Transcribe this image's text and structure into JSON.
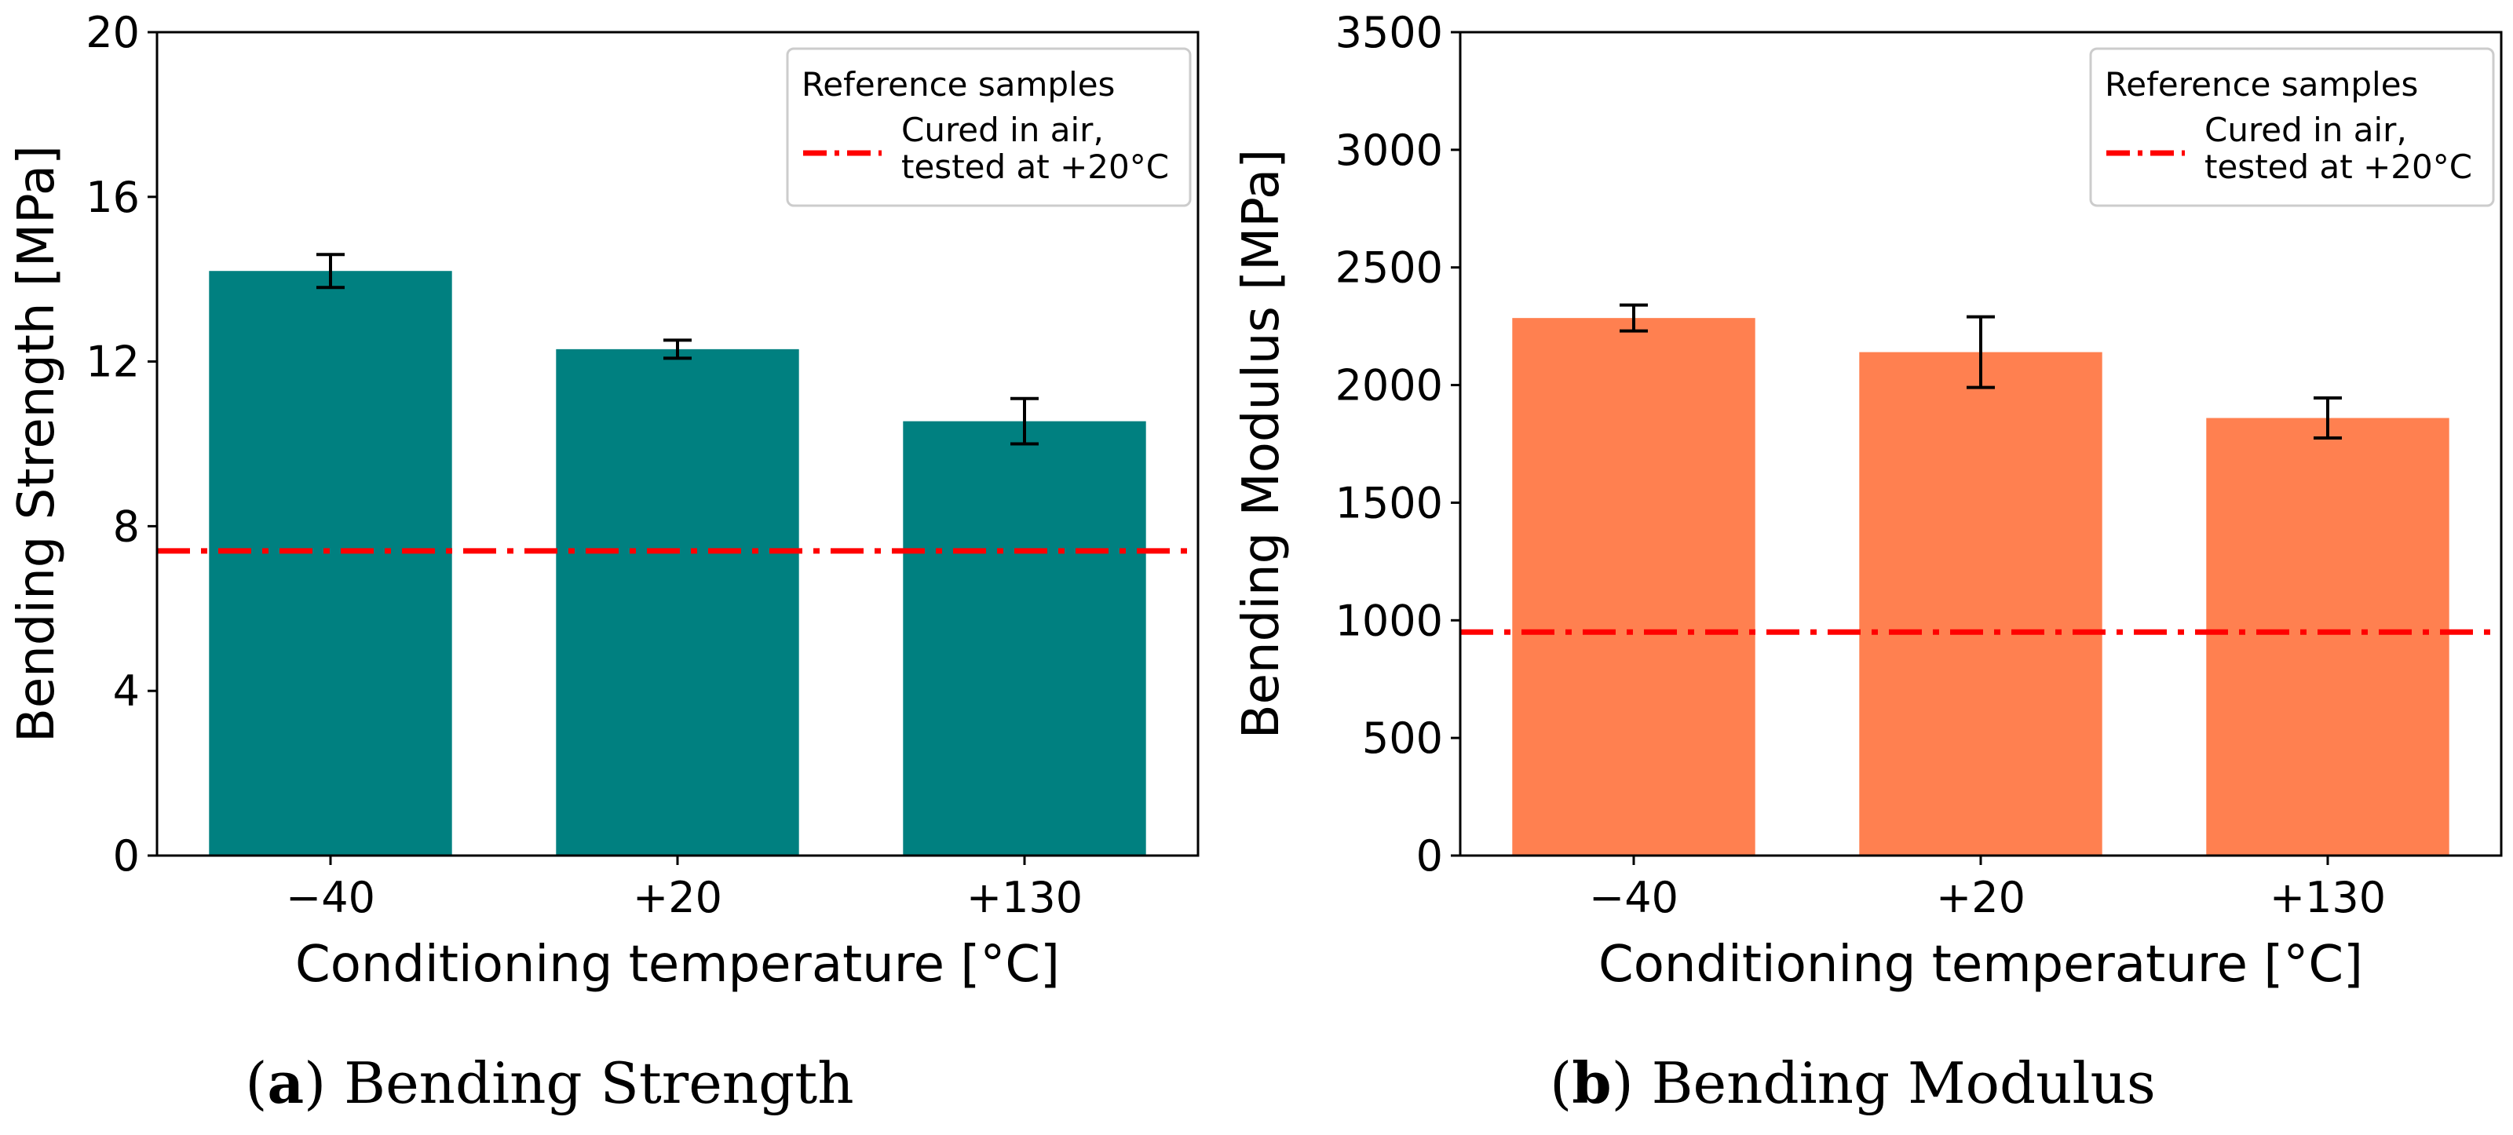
{
  "chart_data": [
    {
      "type": "bar",
      "categories": [
        "−40",
        "+20",
        "+130"
      ],
      "values": [
        14.2,
        12.3,
        10.55
      ],
      "errors": [
        0.4,
        0.22,
        0.55
      ],
      "xlabel": "Conditioning temperature [°C]",
      "ylabel": "Bending Strength [MPa]",
      "ylim": [
        0,
        20
      ],
      "yticks": [
        "0",
        "4",
        "8",
        "12",
        "16",
        "20"
      ],
      "ytick_values": [
        0,
        4,
        8,
        12,
        16,
        20
      ],
      "bar_color": "#008080",
      "reference": {
        "value": 7.4,
        "color": "#ff0000",
        "style": "dash-dot"
      },
      "legend": {
        "title": "Reference samples",
        "line1": "Cured in air,",
        "line2": "tested at +20°C",
        "placement": "top-right"
      },
      "grid": false,
      "caption": {
        "letter": "a",
        "text": "Bending Strength"
      }
    },
    {
      "type": "bar",
      "categories": [
        "−40",
        "+20",
        "+130"
      ],
      "values": [
        2285,
        2140,
        1860
      ],
      "errors": [
        55,
        150,
        85
      ],
      "xlabel": "Conditioning temperature [°C]",
      "ylabel": "Bending Modulus [MPa]",
      "ylim": [
        0,
        3500
      ],
      "yticks": [
        "0",
        "500",
        "1000",
        "1500",
        "2000",
        "2500",
        "3000",
        "3500"
      ],
      "ytick_values": [
        0,
        500,
        1000,
        1500,
        2000,
        2500,
        3000,
        3500
      ],
      "bar_color": "#ff8050",
      "reference": {
        "value": 950,
        "color": "#ff0000",
        "style": "dash-dot"
      },
      "legend": {
        "title": "Reference samples",
        "line1": "Cured in air,",
        "line2": "tested at +20°C",
        "placement": "top-right"
      },
      "grid": false,
      "caption": {
        "letter": "b",
        "text": "Bending Modulus"
      }
    }
  ]
}
